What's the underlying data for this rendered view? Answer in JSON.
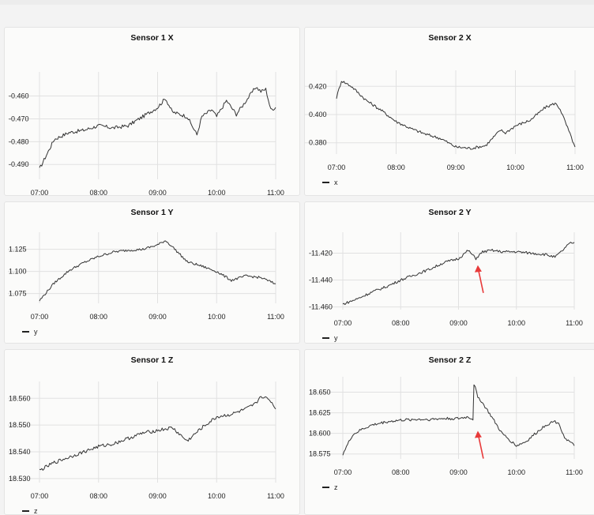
{
  "chart_data": [
    {
      "type": "line",
      "title": "Sensor 1 X",
      "series": [
        {
          "name": "x",
          "color": "#333333",
          "x": [
            "07:00",
            "07:15",
            "07:30",
            "07:45",
            "08:00",
            "08:15",
            "08:30",
            "08:45",
            "09:00",
            "09:08",
            "09:15",
            "09:30",
            "09:40",
            "09:45",
            "09:55",
            "10:00",
            "10:10",
            "10:20",
            "10:30",
            "10:40",
            "10:45",
            "10:50",
            "10:55",
            "11:00"
          ],
          "y": [
            -0.492,
            -0.479,
            -0.476,
            -0.475,
            -0.473,
            -0.474,
            -0.473,
            -0.469,
            -0.465,
            -0.461,
            -0.467,
            -0.469,
            -0.477,
            -0.469,
            -0.466,
            -0.469,
            -0.462,
            -0.468,
            -0.462,
            -0.456,
            -0.458,
            -0.457,
            -0.466,
            -0.465
          ]
        }
      ],
      "yticks": [
        -0.46,
        -0.47,
        -0.48,
        -0.49
      ],
      "ytick_labels": [
        "-0.460",
        "-0.470",
        "-0.480",
        "-0.490"
      ],
      "ylim": [
        -0.4965,
        -0.4515
      ],
      "xticks": [
        "07:00",
        "08:00",
        "09:00",
        "10:00",
        "11:00"
      ],
      "grid": true,
      "legend": "bottom-left"
    },
    {
      "type": "line",
      "title": "Sensor 2 X",
      "series": [
        {
          "name": "x",
          "color": "#333333",
          "x": [
            "07:00",
            "07:05",
            "07:15",
            "07:30",
            "07:45",
            "08:00",
            "08:15",
            "08:30",
            "08:45",
            "09:00",
            "09:15",
            "09:30",
            "09:45",
            "09:50",
            "10:00",
            "10:15",
            "10:30",
            "10:40",
            "10:45",
            "10:50",
            "11:00"
          ],
          "y": [
            0.412,
            0.424,
            0.42,
            0.41,
            0.403,
            0.395,
            0.39,
            0.386,
            0.383,
            0.377,
            0.376,
            0.378,
            0.389,
            0.387,
            0.392,
            0.396,
            0.405,
            0.408,
            0.404,
            0.395,
            0.377
          ]
        }
      ],
      "yticks": [
        0.42,
        0.4,
        0.38
      ],
      "ytick_labels": [
        "0.420",
        "0.400",
        "0.380"
      ],
      "ylim": [
        0.372,
        0.428
      ],
      "xticks": [
        "07:00",
        "08:00",
        "09:00",
        "10:00",
        "11:00"
      ],
      "grid": true,
      "legend": "bottom-left"
    },
    {
      "type": "line",
      "title": "Sensor 1 Y",
      "series": [
        {
          "name": "y",
          "color": "#333333",
          "x": [
            "07:00",
            "07:15",
            "07:30",
            "07:45",
            "08:00",
            "08:15",
            "08:30",
            "08:45",
            "09:00",
            "09:08",
            "09:15",
            "09:30",
            "09:45",
            "10:00",
            "10:15",
            "10:30",
            "10:45",
            "11:00"
          ],
          "y": [
            1.067,
            1.087,
            1.101,
            1.11,
            1.117,
            1.122,
            1.124,
            1.125,
            1.13,
            1.135,
            1.128,
            1.111,
            1.106,
            1.1,
            1.09,
            1.095,
            1.093,
            1.086
          ]
        }
      ],
      "yticks": [
        1.125,
        1.1,
        1.075
      ],
      "ytick_labels": [
        "1.125",
        "1.100",
        "1.075"
      ],
      "ylim": [
        1.064,
        1.139
      ],
      "xticks": [
        "07:00",
        "08:00",
        "09:00",
        "10:00",
        "11:00"
      ],
      "grid": true,
      "legend": "bottom-left"
    },
    {
      "type": "line",
      "title": "Sensor 2 Y",
      "series": [
        {
          "name": "y",
          "color": "#333333",
          "x": [
            "07:00",
            "07:15",
            "07:30",
            "07:45",
            "08:00",
            "08:15",
            "08:30",
            "08:45",
            "09:00",
            "09:10",
            "09:18",
            "09:25",
            "09:35",
            "09:45",
            "10:00",
            "10:15",
            "10:30",
            "10:40",
            "10:45",
            "10:55",
            "11:00"
          ],
          "y": [
            -11.458,
            -11.454,
            -11.449,
            -11.445,
            -11.44,
            -11.436,
            -11.432,
            -11.427,
            -11.424,
            -11.418,
            -11.424,
            -11.419,
            -11.418,
            -11.419,
            -11.419,
            -11.42,
            -11.421,
            -11.423,
            -11.42,
            -11.413,
            -11.412
          ]
        }
      ],
      "yticks": [
        -11.42,
        -11.44,
        -11.46
      ],
      "ytick_labels": [
        "-11.420",
        "-11.440",
        "-11.460"
      ],
      "ylim": [
        -11.462,
        -11.408
      ],
      "xticks": [
        "07:00",
        "08:00",
        "09:00",
        "10:00",
        "11:00"
      ],
      "grid": true,
      "legend": "bottom-left",
      "annotations": [
        {
          "type": "arrow",
          "x": "09:20",
          "y": -11.429,
          "color": "#e83a3a"
        }
      ]
    },
    {
      "type": "line",
      "title": "Sensor 1 Z",
      "series": [
        {
          "name": "z",
          "color": "#333333",
          "x": [
            "07:00",
            "07:15",
            "07:30",
            "07:45",
            "08:00",
            "08:15",
            "08:30",
            "08:45",
            "09:00",
            "09:15",
            "09:30",
            "09:45",
            "10:00",
            "10:15",
            "10:30",
            "10:40",
            "10:45",
            "10:55",
            "11:00"
          ],
          "y": [
            18.533,
            18.536,
            18.538,
            18.54,
            18.542,
            18.543,
            18.545,
            18.547,
            18.548,
            18.549,
            18.544,
            18.549,
            18.553,
            18.554,
            18.556,
            18.558,
            18.561,
            18.559,
            18.556
          ]
        }
      ],
      "yticks": [
        18.56,
        18.55,
        18.54,
        18.53
      ],
      "ytick_labels": [
        "18.560",
        "18.550",
        "18.540",
        "18.530"
      ],
      "ylim": [
        18.5285,
        18.5645
      ],
      "xticks": [
        "07:00",
        "08:00",
        "09:00",
        "10:00",
        "11:00"
      ],
      "grid": true,
      "legend": "bottom-left"
    },
    {
      "type": "line",
      "title": "Sensor 2 Z",
      "series": [
        {
          "name": "z",
          "color": "#333333",
          "x": [
            "07:00",
            "07:10",
            "07:20",
            "07:30",
            "07:45",
            "08:00",
            "08:15",
            "08:30",
            "08:45",
            "09:00",
            "09:10",
            "09:15",
            "09:16",
            "09:20",
            "09:30",
            "09:45",
            "10:00",
            "10:10",
            "10:20",
            "10:30",
            "10:40",
            "10:45",
            "10:50",
            "11:00"
          ],
          "y": [
            18.575,
            18.598,
            18.605,
            18.61,
            18.614,
            18.616,
            18.617,
            18.617,
            18.618,
            18.618,
            18.62,
            18.617,
            18.66,
            18.645,
            18.628,
            18.6,
            18.585,
            18.59,
            18.6,
            18.61,
            18.615,
            18.61,
            18.595,
            18.585
          ]
        }
      ],
      "yticks": [
        18.65,
        18.625,
        18.6,
        18.575
      ],
      "ytick_labels": [
        "18.650",
        "18.625",
        "18.600",
        "18.575"
      ],
      "ylim": [
        18.569,
        18.663
      ],
      "xticks": [
        "07:00",
        "08:00",
        "09:00",
        "10:00",
        "11:00"
      ],
      "grid": true,
      "legend": "bottom-left",
      "annotations": [
        {
          "type": "arrow",
          "x": "09:20",
          "y": 18.603,
          "color": "#e83a3a"
        }
      ]
    }
  ]
}
